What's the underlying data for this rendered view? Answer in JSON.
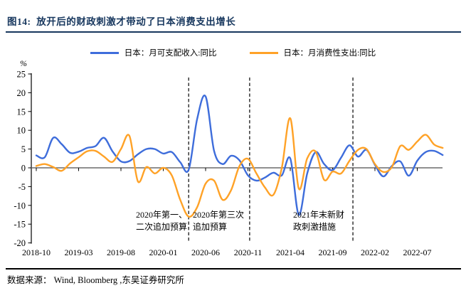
{
  "title": "图14:  放开后的财政刺激才带动了日本消费支出增长",
  "source": "数据来源： Wind, Bloomberg ,东吴证券研究所",
  "colors": {
    "title_text": "#17375E",
    "top_rule": "#17375E",
    "bottom_rule": "#000000",
    "income_line": "#3E6DDB",
    "spending_line": "#FFA227",
    "axis": "#000000",
    "zero_line": "#6B6B6B",
    "dashed_line": "#262626"
  },
  "chart_data": {
    "type": "line",
    "ylabel": "%",
    "ylim": [
      -20,
      25
    ],
    "yticks": [
      25,
      20,
      15,
      10,
      5,
      0,
      -5,
      -10,
      -15,
      -20
    ],
    "xtick_labels": [
      "2018-10",
      "2019-03",
      "2019-08",
      "2020-01",
      "2020-06",
      "2020-11",
      "2021-04",
      "2021-09",
      "2022-02",
      "2022-07"
    ],
    "x": [
      "2018-10",
      "2018-11",
      "2018-12",
      "2019-01",
      "2019-02",
      "2019-03",
      "2019-04",
      "2019-05",
      "2019-06",
      "2019-07",
      "2019-08",
      "2019-09",
      "2019-10",
      "2019-11",
      "2019-12",
      "2020-01",
      "2020-02",
      "2020-03",
      "2020-04",
      "2020-05",
      "2020-06",
      "2020-07",
      "2020-08",
      "2020-09",
      "2020-10",
      "2020-11",
      "2020-12",
      "2021-01",
      "2021-02",
      "2021-03",
      "2021-04",
      "2021-05",
      "2021-06",
      "2021-07",
      "2021-08",
      "2021-09",
      "2021-10",
      "2021-11",
      "2021-12",
      "2022-01",
      "2022-02",
      "2022-03",
      "2022-04",
      "2022-05",
      "2022-06",
      "2022-07",
      "2022-08",
      "2022-09",
      "2022-10"
    ],
    "series": [
      {
        "name": "日本：月可支配收入:同比",
        "color": "#3E6DDB",
        "values": [
          3.3,
          2.8,
          8.0,
          6.3,
          4.0,
          4.3,
          5.3,
          5.8,
          8.0,
          4.4,
          1.7,
          1.8,
          3.6,
          5.0,
          5.0,
          3.8,
          4.2,
          1.5,
          -0.5,
          13.0,
          19.0,
          4.5,
          1.0,
          3.2,
          2.0,
          -2.0,
          -3.4,
          -2.6,
          -1.3,
          -2.0,
          2.5,
          -12.5,
          -1.5,
          4.2,
          1.0,
          -0.6,
          2.7,
          6.0,
          3.0,
          4.8,
          0.8,
          -2.3,
          0.5,
          1.7,
          -2.1,
          1.9,
          4.2,
          4.5,
          3.4
        ]
      },
      {
        "name": "日本：月消费性支出:同比",
        "color": "#FFA227",
        "values": [
          0.5,
          1.0,
          0.2,
          -0.8,
          1.2,
          2.8,
          4.4,
          4.5,
          3.0,
          1.6,
          5.0,
          8.5,
          -3.6,
          0.2,
          -1.5,
          0.0,
          -2.0,
          -8.5,
          -13.0,
          -10.5,
          -4.2,
          -3.4,
          -8.5,
          -6.0,
          0.5,
          2.4,
          -1.5,
          -5.2,
          -7.2,
          0.0,
          13.2,
          -5.5,
          2.5,
          4.3,
          -3.2,
          -1.0,
          -1.5,
          1.9,
          4.8,
          5.0,
          1.0,
          -1.1,
          0.2,
          5.8,
          4.8,
          7.0,
          8.8,
          6.2,
          5.3
        ]
      }
    ],
    "dashed_lines": [
      {
        "month": "2020-04",
        "month_offset": 18.0
      },
      {
        "month": "2020-11",
        "month_offset": 25.2
      },
      {
        "month": "2021-11",
        "month_offset": 37.4
      }
    ],
    "annotations": [
      {
        "lines": [
          "2020年第一、",
          "二次追加预算"
        ]
      },
      {
        "lines": [
          "2020年第三次",
          "追加预算"
        ]
      },
      {
        "lines": [
          "2021年末新财",
          "政刺激措施"
        ]
      }
    ],
    "legend_position": "top",
    "grid": "off"
  }
}
